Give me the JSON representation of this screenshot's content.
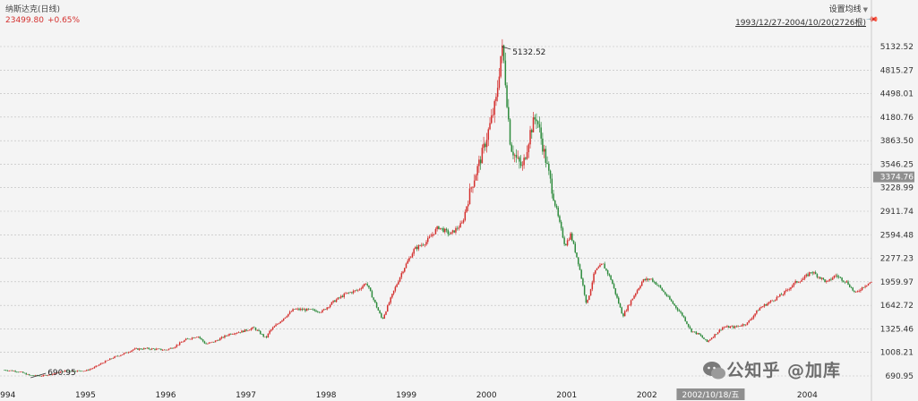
{
  "header": {
    "title": "纳斯达克(日线)",
    "price": "23499.80",
    "change": "+0.65%",
    "ma_setting": "设置均线",
    "range": "1993/12/27-2004/10/20(2726根)"
  },
  "watermark": {
    "text": "公知乎 @加库",
    "icon": "wechat-icon"
  },
  "colors": {
    "up": "#d4302e",
    "down": "#2e8b3d",
    "grid": "#bbbbbb",
    "axis_badge": "#8f8f8f"
  },
  "chart_data": {
    "type": "candlestick",
    "x_tick_labels": [
      "1994",
      "1995",
      "1996",
      "1997",
      "1998",
      "1999",
      "2000",
      "2001",
      "2002",
      "2003",
      "2004"
    ],
    "y_tick_labels": [
      "5132.52",
      "4815.27",
      "4498.01",
      "4180.76",
      "3863.50",
      "3546.25",
      "3228.99",
      "2911.74",
      "2594.48",
      "2277.23",
      "1959.97",
      "1642.72",
      "1325.46",
      "1008.21",
      "690.95"
    ],
    "y_tick_values": [
      5132.52,
      4815.27,
      4498.01,
      4180.76,
      3863.5,
      3546.25,
      3228.99,
      2911.74,
      2594.48,
      2277.23,
      1959.97,
      1642.72,
      1325.46,
      1008.21,
      690.95
    ],
    "ylim": [
      690.95,
      5132.52
    ],
    "xlim": [
      1993.99,
      2004.8
    ],
    "grid": true,
    "crosshair": {
      "y_label": "3374.76",
      "x_label": "2002/10/18/五",
      "y_value": 3374.76,
      "x_value": 2002.795
    },
    "annotations": [
      {
        "text": "5132.52",
        "x": 2000.19,
        "y": 5132.52
      },
      {
        "text": "690.95",
        "x": 1994.45,
        "y": 690.95
      }
    ],
    "series": [
      {
        "x": [
          1993.99,
          1994.1,
          1994.2,
          1994.3,
          1994.45,
          1994.6,
          1994.75,
          1994.9,
          1995.0,
          1995.1,
          1995.2,
          1995.35,
          1995.5,
          1995.6,
          1995.75,
          1995.9,
          1996.0,
          1996.1,
          1996.25,
          1996.4,
          1996.5,
          1996.6,
          1996.8,
          1996.95,
          1997.1,
          1997.25,
          1997.3,
          1997.5,
          1997.6,
          1997.8,
          1997.95,
          1998.1,
          1998.25,
          1998.4,
          1998.5,
          1998.6,
          1998.7,
          1998.85,
          1998.95,
          1999.1,
          1999.25,
          1999.4,
          1999.55,
          1999.7,
          1999.8,
          1999.95,
          2000.05,
          2000.12,
          2000.19,
          2000.22,
          2000.3,
          2000.38,
          2000.45,
          2000.55,
          2000.62,
          2000.7,
          2000.8,
          2000.9,
          2000.98,
          2001.05,
          2001.15,
          2001.25,
          2001.35,
          2001.45,
          2001.55,
          2001.7,
          2001.8,
          2001.95,
          2002.05,
          2002.15,
          2002.3,
          2002.45,
          2002.55,
          2002.65,
          2002.75,
          2002.8,
          2002.95,
          2003.1,
          2003.25,
          2003.4,
          2003.55,
          2003.7,
          2003.85,
          2003.95,
          2004.05,
          2004.25,
          2004.35,
          2004.5,
          2004.6,
          2004.7,
          2004.78
        ],
        "y": [
          770,
          760,
          740,
          700,
          690.95,
          720,
          760,
          760,
          760,
          800,
          860,
          940,
          1000,
          1050,
          1060,
          1050,
          1040,
          1080,
          1180,
          1230,
          1120,
          1150,
          1260,
          1290,
          1340,
          1200,
          1300,
          1500,
          1590,
          1580,
          1560,
          1700,
          1800,
          1850,
          1950,
          1700,
          1450,
          1850,
          2100,
          2400,
          2500,
          2700,
          2600,
          2750,
          3200,
          3700,
          4100,
          4400,
          5132.52,
          4900,
          3800,
          3600,
          3500,
          4000,
          4200,
          3800,
          3300,
          2800,
          2450,
          2600,
          2200,
          1650,
          2100,
          2200,
          2000,
          1500,
          1700,
          1980,
          2000,
          1900,
          1700,
          1500,
          1300,
          1250,
          1150,
          1200,
          1350,
          1350,
          1400,
          1600,
          1700,
          1800,
          1950,
          2000,
          2100,
          1950,
          2050,
          1950,
          1800,
          1900,
          1950
        ]
      }
    ]
  }
}
